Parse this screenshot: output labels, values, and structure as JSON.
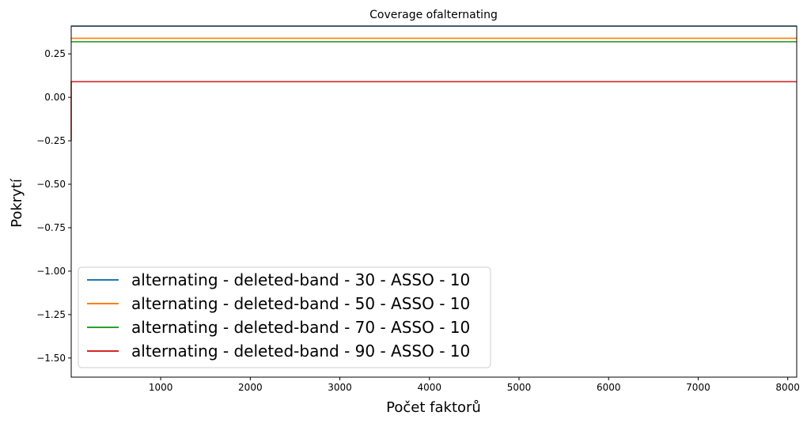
{
  "chart_data": {
    "type": "line",
    "title": "Coverage ofalternating",
    "xlabel": "Počet faktorů",
    "ylabel": "Pokrytí",
    "xlim": [
      1,
      8100
    ],
    "ylim": [
      -1.61,
      0.41
    ],
    "x_ticks": [
      1000,
      2000,
      3000,
      4000,
      5000,
      6000,
      7000,
      8000
    ],
    "x_tick_labels": [
      "1000",
      "2000",
      "3000",
      "4000",
      "5000",
      "6000",
      "7000",
      "8000"
    ],
    "y_ticks": [
      0.25,
      0.0,
      -0.25,
      -0.5,
      -0.75,
      -1.0,
      -1.25,
      -1.5
    ],
    "y_tick_labels": [
      "0.25",
      "0.00",
      "−0.25",
      "−0.50",
      "−0.75",
      "−1.00",
      "−1.25",
      "−1.50"
    ],
    "grid": false,
    "legend_position": "lower-left",
    "series": [
      {
        "name": "alternating - deleted-band - 30 - ASSO - 10",
        "color": "#1f77b4",
        "x": [
          1,
          8100
        ],
        "y": [
          0.41,
          0.41
        ]
      },
      {
        "name": "alternating - deleted-band - 50 - ASSO - 10",
        "color": "#ff7f0e",
        "x": [
          1,
          8100
        ],
        "y": [
          0.34,
          0.34
        ]
      },
      {
        "name": "alternating - deleted-band - 70 - ASSO - 10",
        "color": "#2ca02c",
        "x": [
          1,
          8100
        ],
        "y": [
          0.32,
          0.32
        ]
      },
      {
        "name": "alternating - deleted-band - 90 - ASSO - 10",
        "color": "#d62728",
        "x": [
          1,
          1,
          8100
        ],
        "y": [
          -0.25,
          0.09,
          0.09
        ]
      }
    ]
  }
}
